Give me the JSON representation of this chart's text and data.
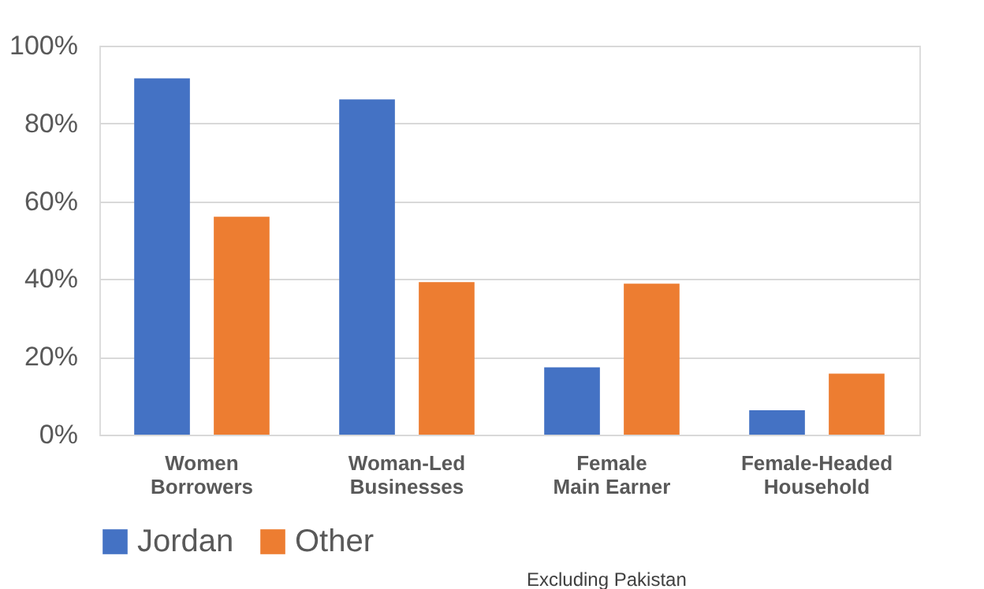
{
  "chart_data": {
    "type": "bar",
    "categories": [
      "Women\nBorrowers",
      "Woman-Led\nBusinesses",
      "Female\nMain Earner",
      "Female-Headed\nHousehold"
    ],
    "series": [
      {
        "name": "Jordan",
        "color": "#4472c4",
        "values": [
          91.6,
          86.2,
          17.3,
          6.3
        ]
      },
      {
        "name": "Other",
        "color": "#ed7d31",
        "values": [
          56,
          39.2,
          38.8,
          15.7
        ]
      }
    ],
    "ylim": [
      0,
      100
    ],
    "yticks": [
      {
        "value": 0,
        "label": "0%"
      },
      {
        "value": 20,
        "label": "20%"
      },
      {
        "value": 40,
        "label": "40%"
      },
      {
        "value": 60,
        "label": "60%"
      },
      {
        "value": 80,
        "label": "80%"
      },
      {
        "value": 100,
        "label": "100%"
      }
    ],
    "grid": "y",
    "legend": "bottom",
    "annotations": [
      "Excluding Pakistan"
    ]
  }
}
